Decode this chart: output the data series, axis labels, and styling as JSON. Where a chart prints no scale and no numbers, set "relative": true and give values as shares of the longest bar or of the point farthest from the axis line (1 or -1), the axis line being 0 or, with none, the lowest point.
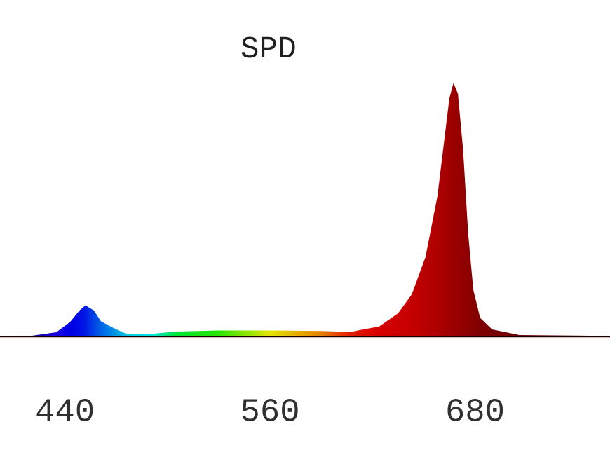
{
  "chart_data": {
    "type": "area",
    "title": "SPD",
    "relative": true,
    "x": [
      402,
      420,
      435,
      443,
      448.5,
      452,
      457,
      461,
      468,
      476,
      490,
      505,
      530,
      560,
      590,
      607,
      624,
      635,
      643,
      651,
      658,
      662,
      665,
      667.4,
      670,
      673,
      676,
      679,
      683,
      690,
      706,
      759
    ],
    "series": [
      {
        "values": [
          0,
          0.003,
          0.017,
          0.057,
          0.103,
          0.123,
          0.103,
          0.061,
          0.035,
          0.011,
          0.01,
          0.02,
          0.024,
          0.024,
          0.022,
          0.018,
          0.04,
          0.092,
          0.166,
          0.313,
          0.552,
          0.773,
          0.939,
          1,
          0.957,
          0.737,
          0.405,
          0.184,
          0.074,
          0.028,
          0.006,
          0.003
        ],
        "colors": [
          "#000080",
          "#1000a0",
          "#2000ff",
          "#0000ff",
          "#0010ff",
          "#0020ff",
          "#0050ff",
          "#0070ff",
          "#00a0ff",
          "#00e0ff",
          "#00ffff",
          "#00ff40",
          "#30ff00",
          "#ffff00",
          "#ff9000",
          "#ff2000",
          "#f00000",
          "#e40000",
          "#dc0000",
          "#d00000",
          "#c40000",
          "#bc0000",
          "#b40000",
          "#b00000",
          "#aa0000",
          "#a40000",
          "#a00000",
          "#980000",
          "#900000",
          "#880000",
          "#780000",
          "#600000"
        ]
      }
    ],
    "xlim": [
      402,
      759
    ],
    "xticks": [
      440,
      560,
      680
    ],
    "grid": false,
    "legend": false
  }
}
